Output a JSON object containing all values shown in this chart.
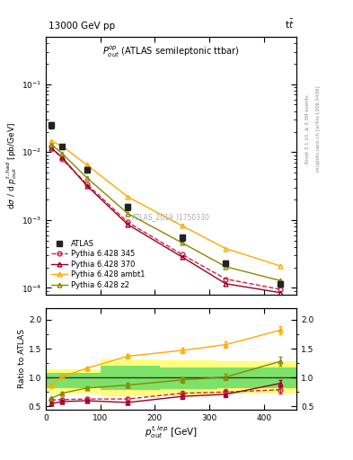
{
  "x_points": [
    10,
    30,
    75,
    150,
    250,
    330,
    430
  ],
  "atlas_y": [
    0.025,
    0.012,
    0.0055,
    0.00155,
    0.00055,
    0.00023,
    0.000115
  ],
  "atlas_yerr": [
    0.003,
    0.001,
    0.0005,
    0.00015,
    5e-05,
    2e-05,
    1e-05
  ],
  "p345_y": [
    0.012,
    0.0078,
    0.0034,
    0.00093,
    0.00031,
    0.000135,
    9.5e-05
  ],
  "p370_y": [
    0.0115,
    0.0083,
    0.0032,
    0.00086,
    0.000285,
    0.000115,
    8.5e-05
  ],
  "pambt1_y": [
    0.0145,
    0.0122,
    0.0065,
    0.0022,
    0.00082,
    0.00038,
    0.00021
  ],
  "pz2_y": [
    0.013,
    0.0095,
    0.0042,
    0.00125,
    0.00046,
    0.000205,
    0.000128
  ],
  "ratio_345": [
    0.61,
    0.62,
    0.63,
    0.63,
    0.73,
    0.75,
    0.79
  ],
  "ratio_370": [
    0.55,
    0.585,
    0.6,
    0.57,
    0.675,
    0.71,
    0.9
  ],
  "ratio_ambt1": [
    0.87,
    1.02,
    1.16,
    1.37,
    1.47,
    1.57,
    1.82
  ],
  "ratio_z2": [
    0.64,
    0.73,
    0.82,
    0.87,
    0.96,
    1.01,
    1.28
  ],
  "ratio_345_err": [
    0.025,
    0.025,
    0.025,
    0.035,
    0.045,
    0.055,
    0.065
  ],
  "ratio_370_err": [
    0.025,
    0.025,
    0.025,
    0.035,
    0.045,
    0.055,
    0.065
  ],
  "ratio_ambt1_err": [
    0.025,
    0.025,
    0.03,
    0.04,
    0.045,
    0.055,
    0.065
  ],
  "ratio_z2_err": [
    0.025,
    0.025,
    0.025,
    0.035,
    0.045,
    0.055,
    0.075
  ],
  "color_atlas": "#222222",
  "color_345": "#cc2244",
  "color_370": "#990022",
  "color_ambt1": "#ffaa00",
  "color_z2": "#888800",
  "xlim": [
    0,
    460
  ],
  "ylim_main": [
    8e-05,
    0.5
  ],
  "ylim_ratio": [
    0.45,
    2.2
  ],
  "band_bins_x": [
    0,
    100,
    210,
    315,
    460
  ],
  "yellow_band_lo": [
    0.72,
    0.68,
    0.7,
    0.72,
    0.72
  ],
  "yellow_band_hi": [
    1.15,
    1.32,
    1.3,
    1.28,
    1.28
  ],
  "green_band_lo": [
    0.82,
    0.79,
    0.8,
    0.82,
    0.82
  ],
  "green_band_hi": [
    1.08,
    1.2,
    1.18,
    1.18,
    1.18
  ]
}
